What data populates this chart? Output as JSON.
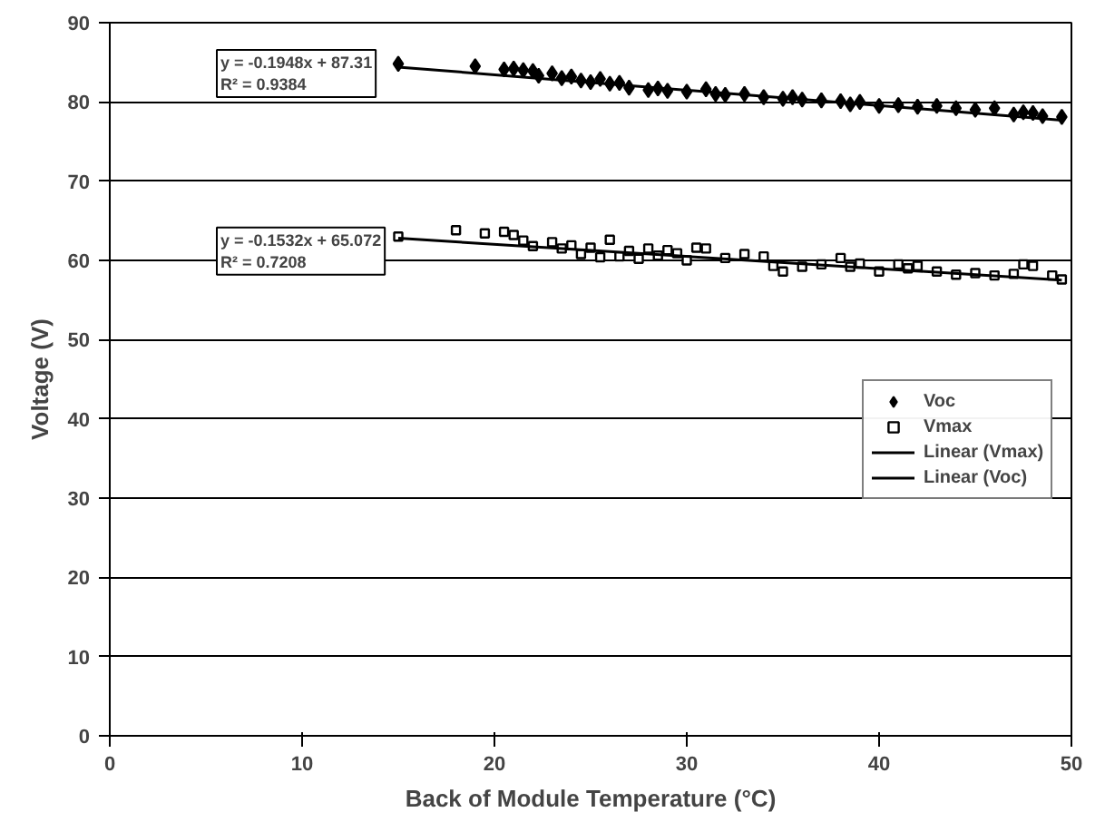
{
  "chart_data": {
    "type": "scatter",
    "xlabel": "Back of Module Temperature (°C)",
    "ylabel": "Voltage (V)",
    "xlim": [
      0,
      50
    ],
    "xticks": [
      0,
      10,
      20,
      30,
      40,
      50
    ],
    "ylim": [
      0,
      90
    ],
    "yticks": [
      0,
      10,
      20,
      30,
      40,
      50,
      60,
      70,
      80,
      90
    ],
    "grid": "y",
    "legend": "right",
    "annotations": [
      "y = -0.1948x + 87.31\nR² = 0.9384",
      "y = -0.1532x + 65.072\nR² = 0.7208"
    ],
    "series": [
      {
        "name": "Voc",
        "color": "#000000",
        "marker": "diamond",
        "x": [
          15,
          19,
          20.5,
          21,
          21.5,
          22,
          22.3,
          23,
          23.5,
          24,
          24.5,
          25,
          25.5,
          26,
          26.5,
          27,
          28,
          28.5,
          29,
          30,
          31,
          31.5,
          32,
          33,
          34,
          35,
          35.5,
          36,
          37,
          38,
          38.5,
          39,
          40,
          41,
          42,
          43,
          44,
          45,
          46,
          47,
          47.5,
          48,
          48.5,
          49.5
        ],
        "values": [
          84.8,
          84.5,
          84.1,
          84.2,
          84,
          83.9,
          83.3,
          83.6,
          83,
          83.2,
          82.7,
          82.5,
          82.9,
          82.3,
          82.4,
          81.8,
          81.5,
          81.7,
          81.4,
          81.3,
          81.6,
          81,
          80.9,
          81,
          80.6,
          80.4,
          80.6,
          80.3,
          80.2,
          80.1,
          79.7,
          80,
          79.5,
          79.6,
          79.4,
          79.5,
          79.2,
          79,
          79.2,
          78.4,
          78.7,
          78.6,
          78.2,
          78.1
        ]
      },
      {
        "name": "Vmax",
        "color": "#000000",
        "marker": "square",
        "x": [
          15,
          18,
          19.5,
          20.5,
          21,
          21.5,
          22,
          23,
          23.5,
          24,
          24.5,
          25,
          25.5,
          26,
          26.5,
          27,
          27.5,
          28,
          28.5,
          29,
          29.5,
          30,
          30.5,
          31,
          32,
          33,
          34,
          34.5,
          35,
          36,
          37,
          38,
          38.5,
          39,
          40,
          41,
          41.5,
          42,
          43,
          44,
          45,
          46,
          47,
          47.5,
          48,
          49,
          49.5
        ],
        "values": [
          63,
          63.8,
          63.4,
          63.6,
          63.2,
          62.5,
          61.8,
          62.3,
          61.5,
          61.9,
          60.8,
          61.6,
          60.4,
          62.6,
          60.5,
          61.2,
          60.2,
          61.5,
          60.6,
          61.3,
          60.9,
          60,
          61.6,
          61.5,
          60.3,
          60.8,
          60.5,
          59.3,
          58.6,
          59.2,
          59.5,
          60.3,
          59.2,
          59.6,
          58.6,
          59.5,
          59,
          59.3,
          58.6,
          58.2,
          58.4,
          58.1,
          58.3,
          59.5,
          59.3,
          58.1,
          57.6
        ]
      },
      {
        "name": "Linear (Vmax)",
        "type": "line",
        "color": "#000000",
        "x": [
          15,
          49.5
        ],
        "values": [
          62.8,
          57.5
        ]
      },
      {
        "name": "Linear (Voc)",
        "type": "line",
        "color": "#000000",
        "x": [
          15,
          49.5
        ],
        "values": [
          84.4,
          77.7
        ]
      }
    ]
  }
}
